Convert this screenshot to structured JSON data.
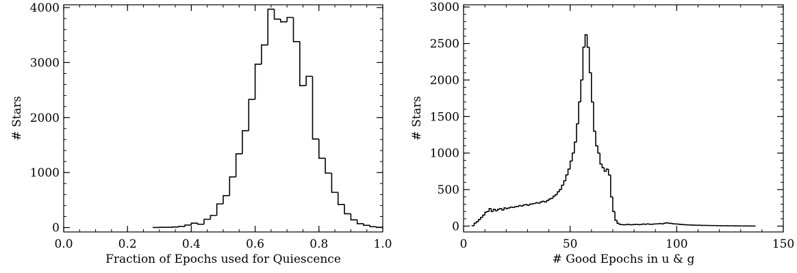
{
  "chart_data": [
    {
      "type": "bar",
      "style": "step-histogram",
      "title": "",
      "xlabel": "Fraction of Epochs used for Quiescence",
      "ylabel": "# Stars",
      "xlim": [
        0.0,
        1.0
      ],
      "ylim": [
        -80,
        4050
      ],
      "xticks": [
        0.0,
        0.2,
        0.4,
        0.6,
        0.8,
        1.0
      ],
      "xtick_labels": [
        "0.0",
        "0.2",
        "0.4",
        "0.6",
        "0.8",
        "1.0"
      ],
      "yticks": [
        0,
        1000,
        2000,
        3000,
        4000
      ],
      "ytick_labels": [
        "0",
        "1000",
        "2000",
        "3000",
        "4000"
      ],
      "bin_width": 0.02,
      "x": [
        0.28,
        0.3,
        0.32,
        0.34,
        0.36,
        0.38,
        0.4,
        0.42,
        0.44,
        0.46,
        0.48,
        0.5,
        0.52,
        0.54,
        0.56,
        0.58,
        0.6,
        0.62,
        0.64,
        0.66,
        0.68,
        0.7,
        0.72,
        0.74,
        0.76,
        0.78,
        0.8,
        0.82,
        0.84,
        0.86,
        0.88,
        0.9,
        0.92,
        0.94,
        0.96,
        0.98
      ],
      "values": [
        2,
        5,
        5,
        10,
        20,
        45,
        80,
        60,
        150,
        220,
        430,
        580,
        920,
        1340,
        1760,
        2330,
        2970,
        3320,
        3970,
        3790,
        3740,
        3820,
        3380,
        2580,
        2750,
        1610,
        1260,
        990,
        640,
        420,
        250,
        140,
        70,
        40,
        15,
        5
      ],
      "grid": false,
      "legend": "none"
    },
    {
      "type": "bar",
      "style": "step-histogram",
      "title": "",
      "xlabel": "# Good Epochs in u & g",
      "ylabel": "# Stars",
      "xlim": [
        0,
        150
      ],
      "ylim": [
        -80,
        3030
      ],
      "xticks": [
        0,
        50,
        100,
        150
      ],
      "xtick_labels": [
        "0",
        "50",
        "100",
        "150"
      ],
      "yticks": [
        0,
        500,
        1000,
        1500,
        2000,
        2500,
        3000
      ],
      "ytick_labels": [
        "0",
        "500",
        "1000",
        "1500",
        "2000",
        "2500",
        "3000"
      ],
      "bin_width": 1,
      "x": [
        4,
        5,
        6,
        7,
        8,
        9,
        10,
        11,
        12,
        13,
        14,
        15,
        16,
        17,
        18,
        19,
        20,
        21,
        22,
        23,
        24,
        25,
        26,
        27,
        28,
        29,
        30,
        31,
        32,
        33,
        34,
        35,
        36,
        37,
        38,
        39,
        40,
        41,
        42,
        43,
        44,
        45,
        46,
        47,
        48,
        49,
        50,
        51,
        52,
        53,
        54,
        55,
        56,
        57,
        58,
        59,
        60,
        61,
        62,
        63,
        64,
        65,
        66,
        67,
        68,
        69,
        70,
        71,
        72,
        73,
        74,
        75,
        76,
        77,
        78,
        79,
        80,
        81,
        82,
        83,
        84,
        85,
        86,
        87,
        88,
        89,
        90,
        91,
        92,
        93,
        94,
        95,
        96,
        97,
        98,
        99,
        100,
        101,
        102,
        103,
        104,
        105,
        106,
        107,
        108,
        109,
        110,
        111,
        112,
        113,
        114,
        115,
        116,
        117,
        118,
        119,
        120,
        121,
        122,
        123,
        124,
        125,
        126,
        127,
        128,
        129,
        130,
        131,
        132,
        133,
        134,
        135,
        136
      ],
      "values": [
        5,
        40,
        60,
        90,
        120,
        150,
        190,
        200,
        240,
        200,
        230,
        210,
        230,
        240,
        220,
        250,
        240,
        250,
        260,
        255,
        265,
        270,
        280,
        275,
        290,
        295,
        285,
        300,
        305,
        310,
        320,
        315,
        330,
        340,
        330,
        350,
        370,
        380,
        410,
        430,
        470,
        500,
        560,
        620,
        700,
        780,
        890,
        1000,
        1150,
        1400,
        1700,
        2000,
        2450,
        2620,
        2450,
        2100,
        1700,
        1300,
        1100,
        1000,
        850,
        800,
        750,
        780,
        700,
        400,
        200,
        80,
        40,
        25,
        20,
        18,
        20,
        25,
        18,
        20,
        22,
        25,
        20,
        22,
        28,
        25,
        30,
        26,
        25,
        28,
        30,
        32,
        35,
        30,
        40,
        45,
        40,
        38,
        32,
        30,
        28,
        25,
        22,
        20,
        18,
        16,
        15,
        14,
        13,
        12,
        12,
        11,
        10,
        10,
        9,
        8,
        8,
        7,
        7,
        6,
        6,
        5,
        5,
        5,
        4,
        4,
        4,
        3,
        3,
        3,
        2,
        2,
        2,
        2,
        1,
        1,
        1
      ],
      "grid": false,
      "legend": "none"
    }
  ]
}
